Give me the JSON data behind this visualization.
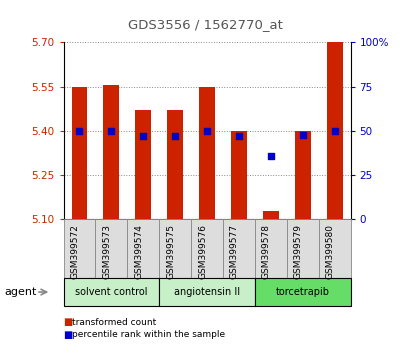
{
  "title": "GDS3556 / 1562770_at",
  "samples": [
    "GSM399572",
    "GSM399573",
    "GSM399574",
    "GSM399575",
    "GSM399576",
    "GSM399577",
    "GSM399578",
    "GSM399579",
    "GSM399580"
  ],
  "bar_bottom": 5.1,
  "bar_tops": [
    5.55,
    5.555,
    5.47,
    5.47,
    5.55,
    5.4,
    5.13,
    5.4,
    5.7
  ],
  "percentile_ranks": [
    50,
    50,
    47,
    47,
    50,
    47,
    36,
    48,
    50
  ],
  "ylim_left": [
    5.1,
    5.7
  ],
  "ylim_right": [
    0,
    100
  ],
  "yticks_left": [
    5.1,
    5.25,
    5.4,
    5.55,
    5.7
  ],
  "yticks_right": [
    0,
    25,
    50,
    75,
    100
  ],
  "bar_color": "#cc2200",
  "dot_color": "#0000cc",
  "bar_width": 0.5,
  "groups": [
    {
      "label": "solvent control",
      "indices": [
        0,
        1,
        2
      ],
      "color": "#c8f0c8"
    },
    {
      "label": "angiotensin II",
      "indices": [
        3,
        4,
        5
      ],
      "color": "#c8f0c8"
    },
    {
      "label": "torcetrapib",
      "indices": [
        6,
        7,
        8
      ],
      "color": "#66dd66"
    }
  ],
  "agent_label": "agent",
  "legend_items": [
    {
      "color": "#cc2200",
      "label": "transformed count"
    },
    {
      "color": "#0000cc",
      "label": "percentile rank within the sample"
    }
  ],
  "title_color": "#555555",
  "left_tick_color": "#cc2200",
  "right_tick_color": "#0000cc",
  "grid_color": "#888888"
}
